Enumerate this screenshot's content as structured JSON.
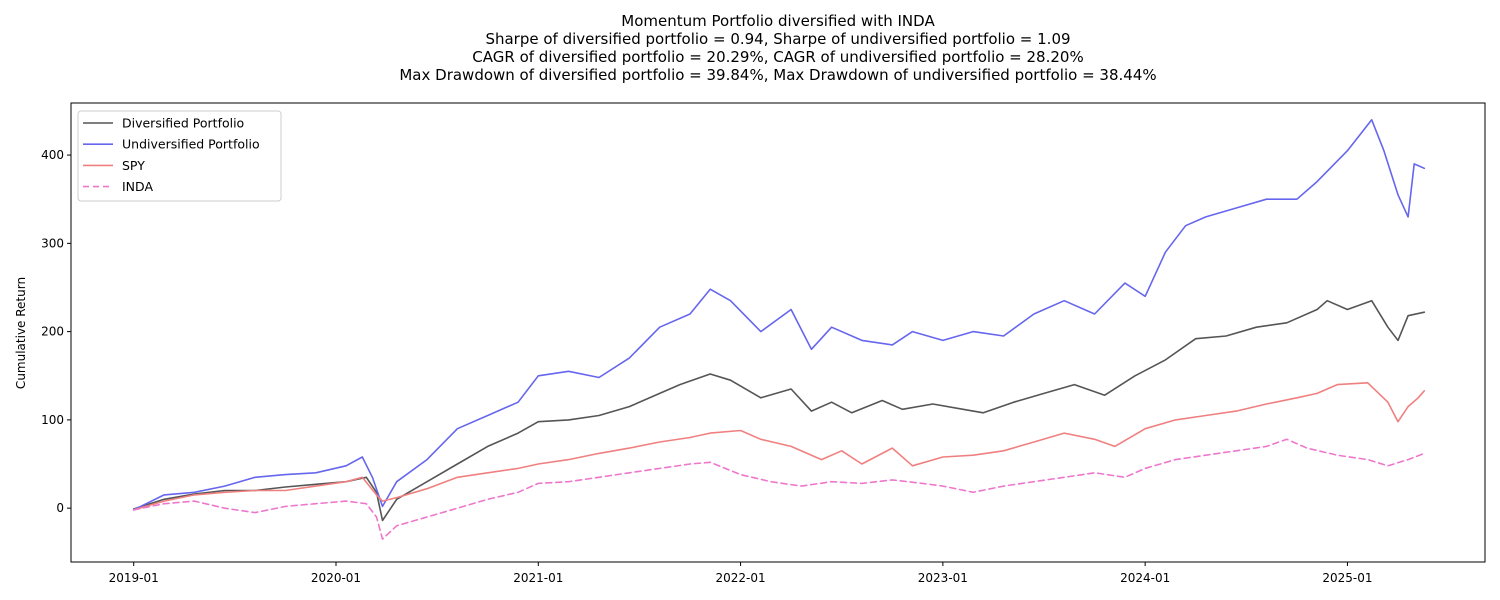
{
  "chart_data": {
    "type": "line",
    "title_lines": [
      "Momentum Portfolio diversified with INDA",
      "Sharpe of diversified portfolio = 0.94, Sharpe of undiversified portfolio = 1.09",
      "CAGR of diversified portfolio = 20.29%, CAGR of undiversified portfolio = 28.20%",
      "Max Drawdown of diversified portfolio = 39.84%, Max Drawdown of undiversified portfolio = 38.44%"
    ],
    "xlabel": "",
    "ylabel": "Cumulative Return",
    "xlim": [
      2018.69,
      2025.68
    ],
    "ylim": [
      -61,
      459
    ],
    "x_ticks": [
      2019.0,
      2020.0,
      2021.0,
      2022.0,
      2023.0,
      2024.0,
      2025.0
    ],
    "x_tick_labels": [
      "2019-01",
      "2020-01",
      "2021-01",
      "2022-01",
      "2023-01",
      "2024-01",
      "2025-01"
    ],
    "y_ticks": [
      0,
      100,
      200,
      300,
      400
    ],
    "y_tick_labels": [
      "0",
      "100",
      "200",
      "300",
      "400"
    ],
    "grid": false,
    "legend_position": "upper-left",
    "series": [
      {
        "name": "Diversified Portfolio",
        "color": "#555555",
        "style": "solid",
        "x": [
          2019.0,
          2019.15,
          2019.3,
          2019.45,
          2019.6,
          2019.75,
          2019.9,
          2020.05,
          2020.15,
          2020.2,
          2020.23,
          2020.3,
          2020.45,
          2020.6,
          2020.75,
          2020.9,
          2021.0,
          2021.15,
          2021.3,
          2021.45,
          2021.6,
          2021.7,
          2021.85,
          2021.95,
          2022.1,
          2022.25,
          2022.35,
          2022.45,
          2022.55,
          2022.7,
          2022.8,
          2022.95,
          2023.1,
          2023.2,
          2023.35,
          2023.5,
          2023.65,
          2023.8,
          2023.95,
          2024.1,
          2024.25,
          2024.4,
          2024.55,
          2024.7,
          2024.85,
          2024.9,
          2025.0,
          2025.12,
          2025.2,
          2025.25,
          2025.3,
          2025.38
        ],
        "y": [
          -1,
          10,
          16,
          20,
          20,
          24,
          27,
          30,
          35,
          18,
          -14,
          10,
          30,
          50,
          70,
          85,
          98,
          100,
          105,
          115,
          130,
          140,
          152,
          145,
          125,
          135,
          110,
          120,
          108,
          122,
          112,
          118,
          112,
          108,
          120,
          130,
          140,
          128,
          150,
          168,
          192,
          195,
          205,
          210,
          225,
          235,
          225,
          235,
          205,
          190,
          218,
          222
        ]
      },
      {
        "name": "Undiversified Portfolio",
        "color": "#6666ee",
        "style": "solid",
        "x": [
          2019.0,
          2019.15,
          2019.3,
          2019.45,
          2019.6,
          2019.75,
          2019.9,
          2020.05,
          2020.13,
          2020.18,
          2020.23,
          2020.3,
          2020.45,
          2020.6,
          2020.75,
          2020.9,
          2021.0,
          2021.15,
          2021.3,
          2021.45,
          2021.6,
          2021.75,
          2021.85,
          2021.95,
          2022.1,
          2022.25,
          2022.35,
          2022.45,
          2022.6,
          2022.75,
          2022.85,
          2023.0,
          2023.15,
          2023.3,
          2023.45,
          2023.6,
          2023.75,
          2023.9,
          2024.0,
          2024.1,
          2024.2,
          2024.3,
          2024.45,
          2024.6,
          2024.75,
          2024.85,
          2025.0,
          2025.12,
          2025.18,
          2025.25,
          2025.3,
          2025.33,
          2025.38
        ],
        "y": [
          -2,
          15,
          18,
          25,
          35,
          38,
          40,
          48,
          58,
          35,
          2,
          30,
          55,
          90,
          105,
          120,
          150,
          155,
          148,
          170,
          205,
          220,
          248,
          235,
          200,
          225,
          180,
          205,
          190,
          185,
          200,
          190,
          200,
          195,
          220,
          235,
          220,
          255,
          240,
          290,
          320,
          330,
          340,
          350,
          350,
          370,
          405,
          440,
          405,
          355,
          330,
          390,
          385
        ]
      },
      {
        "name": "SPY",
        "color": "#f08080",
        "style": "solid",
        "x": [
          2019.0,
          2019.15,
          2019.3,
          2019.45,
          2019.6,
          2019.75,
          2019.9,
          2020.05,
          2020.13,
          2020.2,
          2020.23,
          2020.3,
          2020.45,
          2020.6,
          2020.75,
          2020.9,
          2021.0,
          2021.15,
          2021.3,
          2021.45,
          2021.6,
          2021.75,
          2021.85,
          2022.0,
          2022.1,
          2022.25,
          2022.4,
          2022.5,
          2022.6,
          2022.75,
          2022.85,
          2023.0,
          2023.15,
          2023.3,
          2023.45,
          2023.6,
          2023.75,
          2023.85,
          2024.0,
          2024.15,
          2024.3,
          2024.45,
          2024.6,
          2024.75,
          2024.85,
          2024.95,
          2025.1,
          2025.2,
          2025.25,
          2025.3,
          2025.35,
          2025.38
        ],
        "y": [
          -2,
          8,
          15,
          18,
          20,
          20,
          25,
          30,
          35,
          15,
          8,
          12,
          22,
          35,
          40,
          45,
          50,
          55,
          62,
          68,
          75,
          80,
          85,
          88,
          78,
          70,
          55,
          65,
          50,
          68,
          48,
          58,
          60,
          65,
          75,
          85,
          78,
          70,
          90,
          100,
          105,
          110,
          118,
          125,
          130,
          140,
          142,
          120,
          98,
          115,
          125,
          133
        ]
      },
      {
        "name": "INDA",
        "color": "#ee77cc",
        "style": "dashed",
        "x": [
          2019.0,
          2019.15,
          2019.3,
          2019.45,
          2019.6,
          2019.75,
          2019.9,
          2020.05,
          2020.15,
          2020.2,
          2020.23,
          2020.3,
          2020.45,
          2020.6,
          2020.75,
          2020.9,
          2021.0,
          2021.15,
          2021.3,
          2021.45,
          2021.6,
          2021.75,
          2021.85,
          2022.0,
          2022.15,
          2022.3,
          2022.45,
          2022.6,
          2022.75,
          2022.9,
          2023.0,
          2023.15,
          2023.3,
          2023.45,
          2023.6,
          2023.75,
          2023.9,
          2024.0,
          2024.15,
          2024.3,
          2024.45,
          2024.6,
          2024.7,
          2024.8,
          2024.95,
          2025.1,
          2025.2,
          2025.3,
          2025.38
        ],
        "y": [
          -2,
          5,
          8,
          0,
          -5,
          2,
          5,
          8,
          5,
          -10,
          -35,
          -20,
          -10,
          0,
          10,
          18,
          28,
          30,
          35,
          40,
          45,
          50,
          52,
          38,
          30,
          25,
          30,
          28,
          32,
          28,
          25,
          18,
          25,
          30,
          35,
          40,
          35,
          45,
          55,
          60,
          65,
          70,
          78,
          68,
          60,
          55,
          48,
          55,
          62
        ]
      }
    ]
  }
}
